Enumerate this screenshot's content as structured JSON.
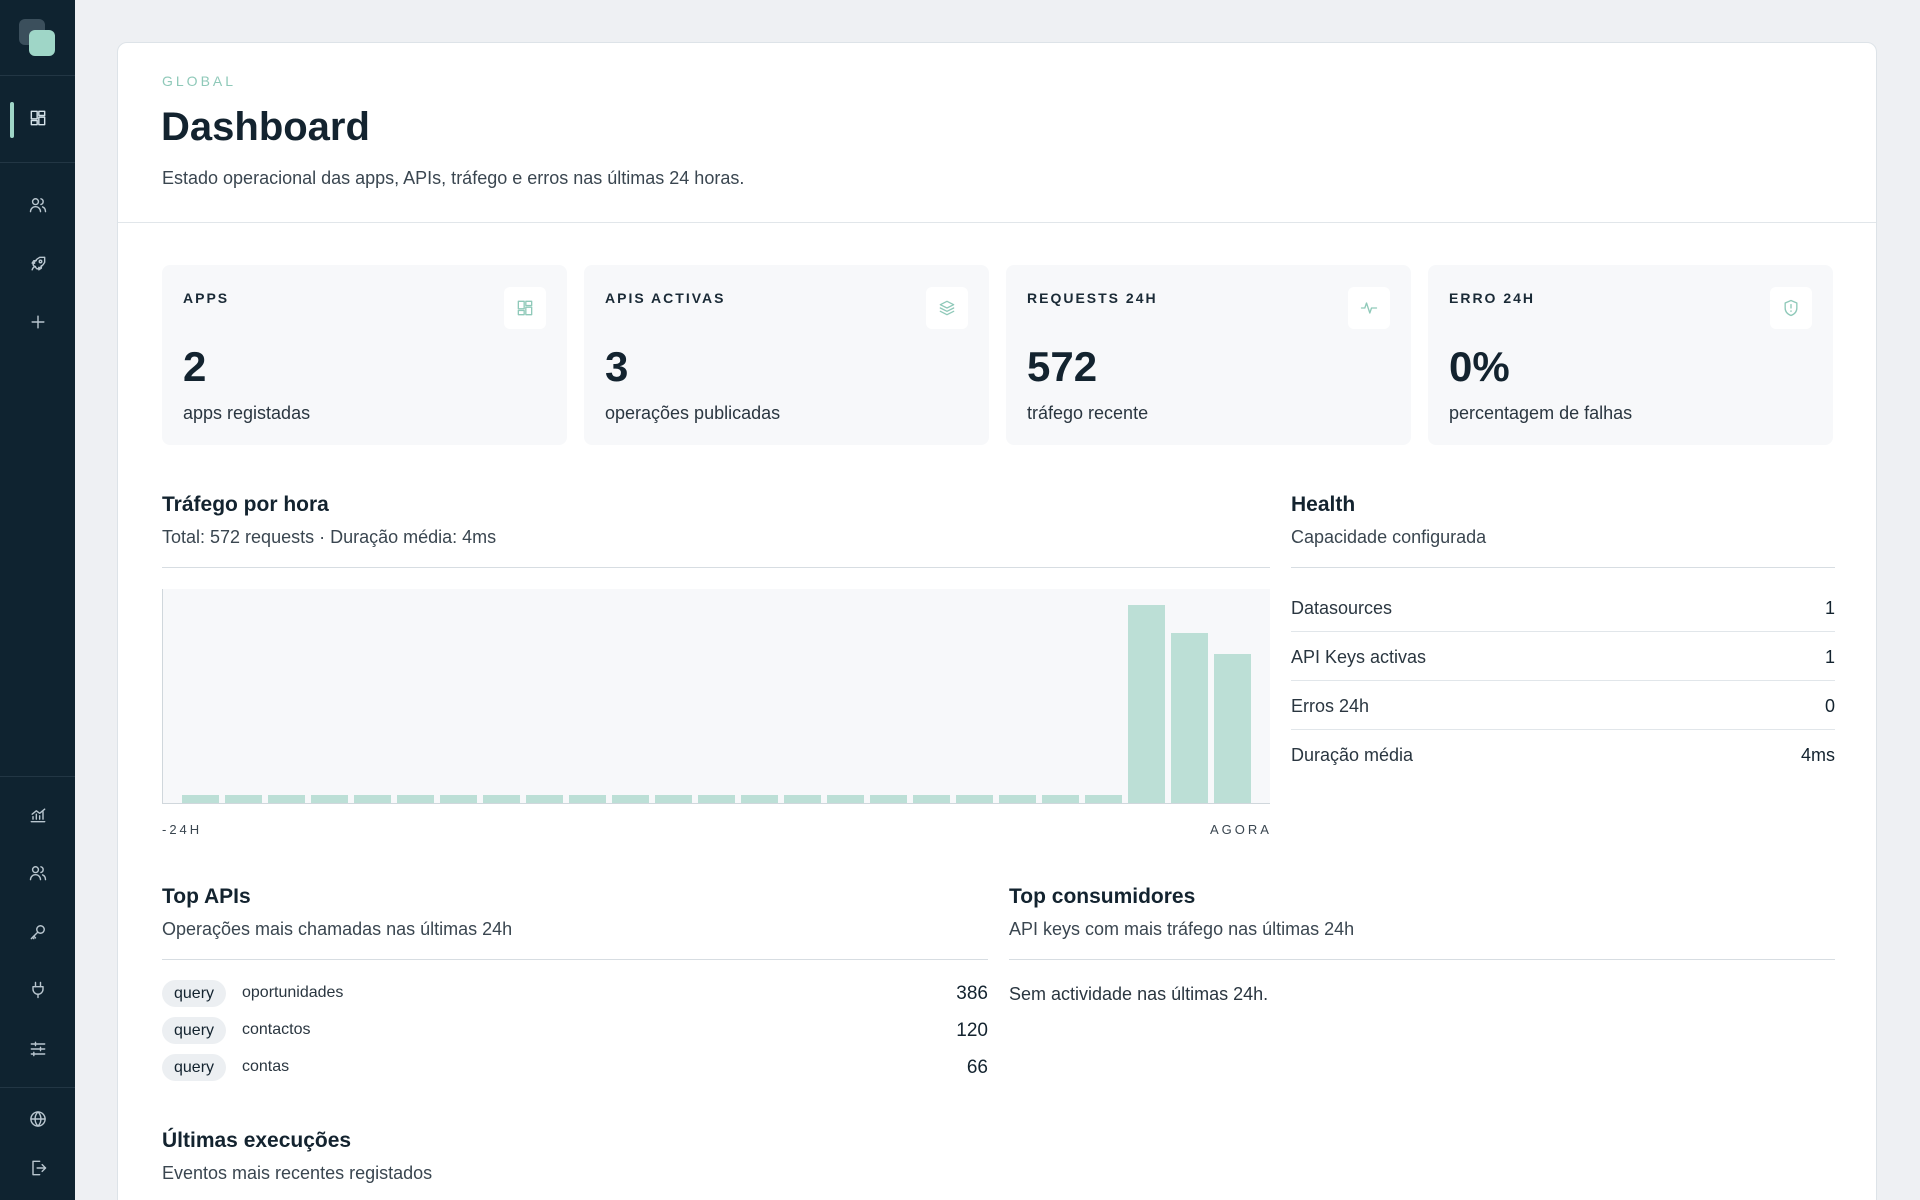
{
  "sidebar": {
    "icons": [
      "dashboard-icon",
      "users-icon",
      "rocket-icon",
      "plus-icon",
      "analytics-icon",
      "team-icon",
      "key-icon",
      "plug-icon",
      "sliders-icon",
      "globe-icon",
      "logout-icon"
    ]
  },
  "header": {
    "eyebrow": "GLOBAL",
    "title": "Dashboard",
    "subtitle": "Estado operacional das apps, APIs, tráfego e erros nas últimas 24 horas."
  },
  "kpis": [
    {
      "label": "APPS",
      "value": "2",
      "desc": "apps registadas",
      "icon": "grid-icon"
    },
    {
      "label": "APIS ACTIVAS",
      "value": "3",
      "desc": "operações publicadas",
      "icon": "layers-icon"
    },
    {
      "label": "REQUESTS 24H",
      "value": "572",
      "desc": "tráfego recente",
      "icon": "activity-icon"
    },
    {
      "label": "ERRO 24H",
      "value": "0%",
      "desc": "percentagem de falhas",
      "icon": "shield-icon"
    }
  ],
  "traffic": {
    "title": "Tráfego por hora",
    "subtitle": "Total: 572 requests · Duração média: 4ms",
    "axis_start": "-24H",
    "axis_end": "AGORA"
  },
  "chart_data": {
    "type": "bar",
    "values": [
      4,
      4,
      4,
      4,
      4,
      4,
      4,
      4,
      4,
      4,
      4,
      4,
      4,
      4,
      4,
      4,
      4,
      4,
      4,
      4,
      4,
      4,
      100,
      86,
      75
    ],
    "ylim": [
      0,
      108
    ],
    "bar_color": "#bcdfd6"
  },
  "health": {
    "title": "Health",
    "subtitle": "Capacidade configurada",
    "rows": [
      {
        "label": "Datasources",
        "value": "1"
      },
      {
        "label": "API Keys activas",
        "value": "1"
      },
      {
        "label": "Erros 24h",
        "value": "0"
      },
      {
        "label": "Duração média",
        "value": "4ms"
      }
    ]
  },
  "top_apis": {
    "title": "Top APIs",
    "subtitle": "Operações mais chamadas nas últimas 24h",
    "rows": [
      {
        "type": "query",
        "name": "oportunidades",
        "count": "386"
      },
      {
        "type": "query",
        "name": "contactos",
        "count": "120"
      },
      {
        "type": "query",
        "name": "contas",
        "count": "66"
      }
    ]
  },
  "top_consumers": {
    "title": "Top consumidores",
    "subtitle": "API keys com mais tráfego nas últimas 24h",
    "empty": "Sem actividade nas últimas 24h."
  },
  "executions": {
    "title": "Últimas execuções",
    "subtitle": "Eventos mais recentes registados"
  },
  "colors": {
    "sidebar_bg": "#0f2330",
    "accent": "#9fd6c7",
    "bar": "#bcdfd6"
  }
}
